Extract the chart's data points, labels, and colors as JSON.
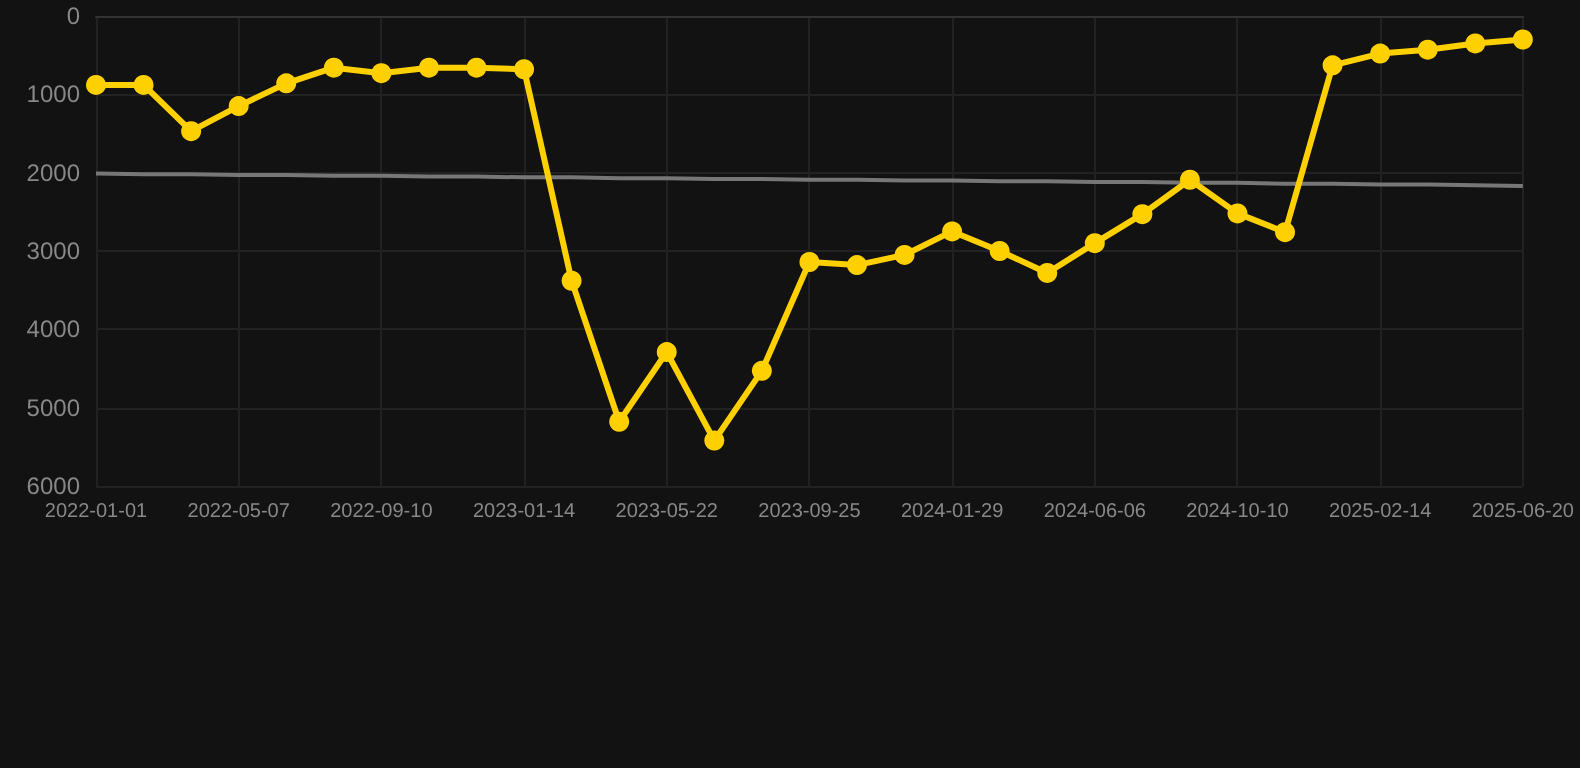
{
  "chart_data": {
    "type": "line",
    "categories": [
      "2022-01-01",
      null,
      null,
      "2022-05-07",
      null,
      null,
      "2022-09-10",
      null,
      null,
      "2023-01-14",
      null,
      null,
      "2023-05-22",
      null,
      null,
      "2023-09-25",
      null,
      null,
      "2024-01-29",
      null,
      null,
      "2024-06-06",
      null,
      null,
      "2024-10-10",
      null,
      null,
      "2025-02-14",
      null,
      null,
      "2025-06-20"
    ],
    "series": [
      {
        "color": "#ffd000",
        "marker": "circle",
        "values": [
          880,
          880,
          1470,
          1150,
          860,
          660,
          730,
          660,
          660,
          680,
          3380,
          5180,
          4290,
          5420,
          4530,
          3140,
          3180,
          3050,
          2750,
          3000,
          3280,
          2900,
          2530,
          2090,
          2520,
          2760,
          630,
          480,
          430,
          350,
          300
        ]
      },
      {
        "type": "line",
        "color": "#777777",
        "marker": "none",
        "values": [
          2010,
          2020,
          2020,
          2030,
          2030,
          2040,
          2040,
          2050,
          2050,
          2060,
          2060,
          2070,
          2070,
          2080,
          2080,
          2090,
          2090,
          2100,
          2100,
          2110,
          2110,
          2120,
          2120,
          2130,
          2130,
          2140,
          2140,
          2150,
          2150,
          2160,
          2170
        ]
      }
    ],
    "ylim": [
      6000,
      0
    ],
    "yticks": [
      0,
      1000,
      2000,
      3000,
      4000,
      5000,
      6000
    ],
    "grid": true
  }
}
